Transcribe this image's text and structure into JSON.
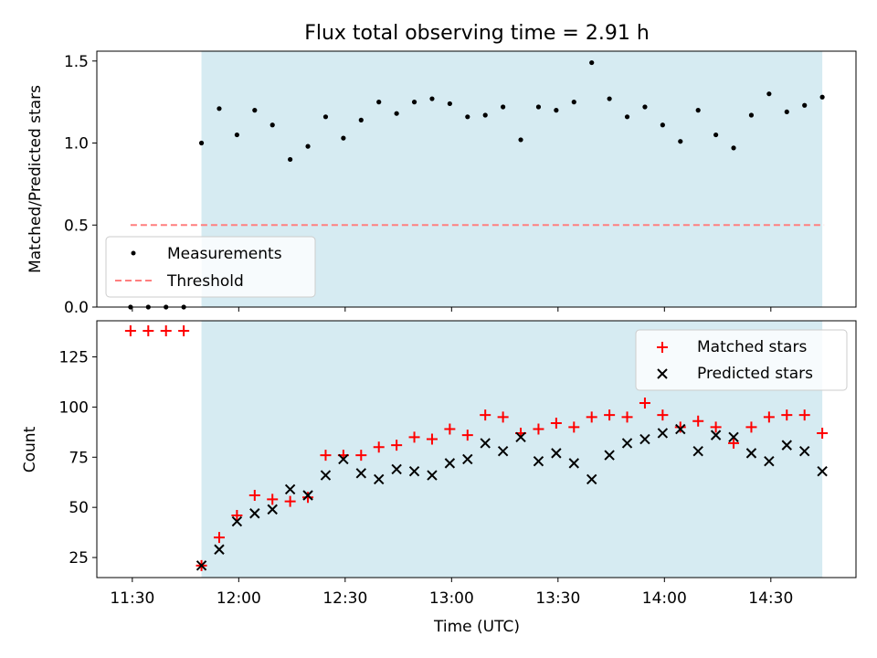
{
  "title": "Flux total observing time = 2.91 h",
  "colors": {
    "shade": "#add8e6",
    "measurement": "#000000",
    "threshold": "#ff7f7f",
    "matched": "#ff0000",
    "predicted": "#000000"
  },
  "chart_data": [
    {
      "type": "scatter",
      "panel": "top",
      "ylabel": "Matched/Predicted stars",
      "ylim": [
        0,
        1.56
      ],
      "yticks": [
        "0.0",
        "0.5",
        "1.0",
        "1.5"
      ],
      "ytick_values": [
        0,
        0.5,
        1.0,
        1.5
      ],
      "legend_position": "lower-left",
      "threshold": {
        "name": "Threshold",
        "value": 0.5,
        "x_range_min": [
          -0.5,
          195
        ]
      },
      "series": [
        {
          "name": "Measurements",
          "x_min": [
            -0.5,
            4.5,
            9.5,
            14.5,
            19.5,
            24.5,
            29.5,
            34.5,
            39.5,
            44.5,
            49.5,
            54.5,
            59.5,
            64.5,
            69.5,
            74.5,
            79.5,
            84.5,
            89.5,
            94.5,
            99.5,
            104.5,
            109.5,
            114.5,
            119.5,
            124.5,
            129.5,
            134.5,
            139.5,
            144.5,
            149.5,
            154.5,
            159.5,
            164.5,
            169.5,
            174.5,
            179.5,
            184.5,
            189.5,
            194.5
          ],
          "values": [
            0,
            0,
            0,
            0,
            1.0,
            1.21,
            1.05,
            1.2,
            1.11,
            0.9,
            0.98,
            1.16,
            1.03,
            1.14,
            1.25,
            1.18,
            1.25,
            1.27,
            1.24,
            1.16,
            1.17,
            1.22,
            1.02,
            1.22,
            1.2,
            1.25,
            1.49,
            1.27,
            1.16,
            1.22,
            1.11,
            1.01,
            1.2,
            1.05,
            0.97,
            1.17,
            1.3,
            1.19,
            1.23,
            1.28
          ]
        }
      ]
    },
    {
      "type": "scatter",
      "panel": "bottom",
      "xlabel": "Time (UTC)",
      "ylabel": "Count",
      "ylim": [
        15,
        143
      ],
      "yticks": [
        "25",
        "50",
        "75",
        "100",
        "125"
      ],
      "ytick_values": [
        25,
        50,
        75,
        100,
        125
      ],
      "xlim_min": [
        -10,
        204
      ],
      "xticks": [
        "11:30",
        "12:00",
        "12:30",
        "13:00",
        "13:30",
        "14:00",
        "14:30"
      ],
      "xtick_min": [
        0,
        30,
        60,
        90,
        120,
        150,
        180
      ],
      "legend_position": "upper-right",
      "shaded_range_min": [
        19.5,
        194.5
      ],
      "series": [
        {
          "name": "Matched stars",
          "x_min": [
            -0.5,
            4.5,
            9.5,
            14.5,
            19.5,
            24.5,
            29.5,
            34.5,
            39.5,
            44.5,
            49.5,
            54.5,
            59.5,
            64.5,
            69.5,
            74.5,
            79.5,
            84.5,
            89.5,
            94.5,
            99.5,
            104.5,
            109.5,
            114.5,
            119.5,
            124.5,
            129.5,
            134.5,
            139.5,
            144.5,
            149.5,
            154.5,
            159.5,
            164.5,
            169.5,
            174.5,
            179.5,
            184.5,
            189.5,
            194.5
          ],
          "values": [
            138,
            138,
            138,
            138,
            21,
            35,
            46,
            56,
            54,
            53,
            55,
            76,
            76,
            76,
            80,
            81,
            85,
            84,
            89,
            86,
            96,
            95,
            87,
            89,
            92,
            90,
            95,
            96,
            95,
            102,
            96,
            90,
            93,
            90,
            82,
            90,
            95,
            96,
            96,
            87
          ]
        },
        {
          "name": "Predicted stars",
          "x_min": [
            19.5,
            24.5,
            29.5,
            34.5,
            39.5,
            44.5,
            49.5,
            54.5,
            59.5,
            64.5,
            69.5,
            74.5,
            79.5,
            84.5,
            89.5,
            94.5,
            99.5,
            104.5,
            109.5,
            114.5,
            119.5,
            124.5,
            129.5,
            134.5,
            139.5,
            144.5,
            149.5,
            154.5,
            159.5,
            164.5,
            169.5,
            174.5,
            179.5,
            184.5,
            189.5,
            194.5
          ],
          "values": [
            21,
            29,
            43,
            47,
            49,
            59,
            56,
            66,
            74,
            67,
            64,
            69,
            68,
            66,
            72,
            74,
            82,
            78,
            85,
            73,
            77,
            72,
            64,
            76,
            82,
            84,
            87,
            89,
            78,
            86,
            85,
            77,
            73,
            81,
            78,
            68
          ]
        }
      ]
    }
  ]
}
